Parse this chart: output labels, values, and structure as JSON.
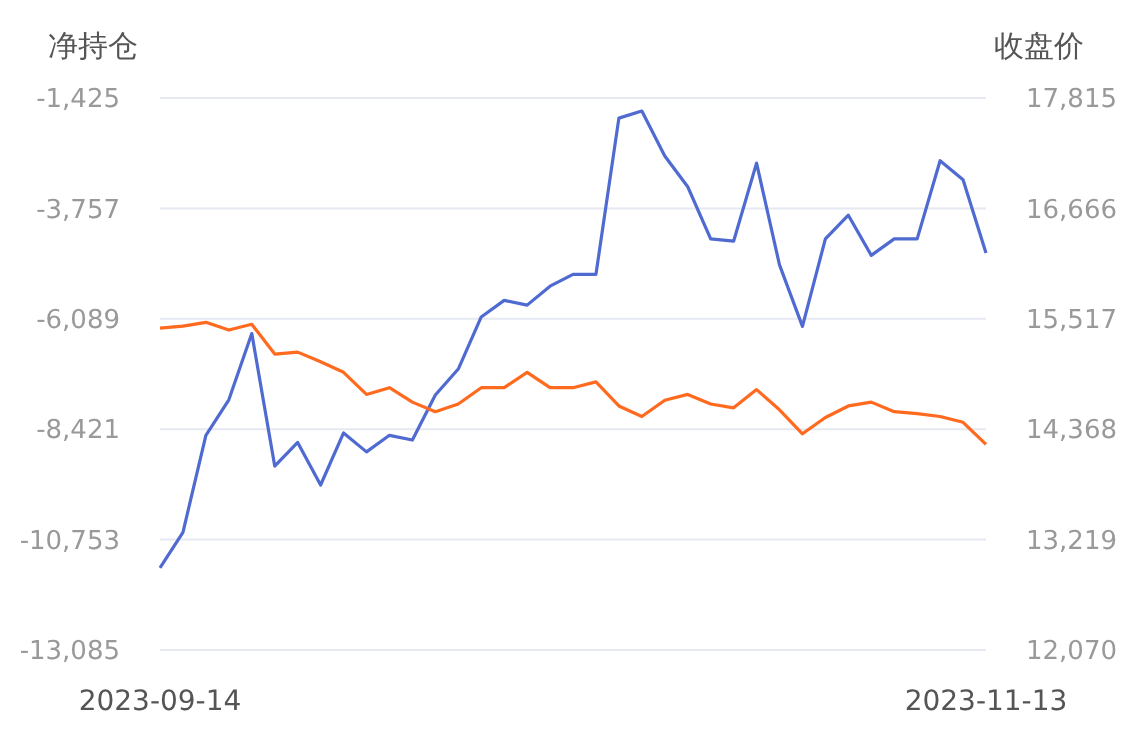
{
  "chart_data": {
    "type": "line",
    "ylabel": "净持仓",
    "y2label": "收盘价",
    "categories": [
      "2023-09-14",
      null,
      null,
      null,
      null,
      null,
      null,
      null,
      null,
      null,
      null,
      null,
      null,
      null,
      null,
      null,
      null,
      null,
      null,
      null,
      null,
      null,
      null,
      null,
      null,
      null,
      null,
      null,
      null,
      null,
      null,
      null,
      null,
      null,
      null,
      null,
      "2023-11-13"
    ],
    "series": [
      {
        "color": "#4f6ad0",
        "values": [
          -11350,
          -10600,
          -8550,
          -7800,
          -6400,
          -9200,
          -8700,
          -9600,
          -8500,
          -8900,
          -8550,
          -8650,
          -7700,
          -7150,
          -6050,
          -5700,
          -5800,
          -5400,
          -5150,
          -5150,
          -1850,
          -1700,
          -2650,
          -3300,
          -4400,
          -4450,
          -2800,
          -4950,
          -6250,
          -4400,
          -3900,
          -4750,
          -4400,
          -4400,
          -2750,
          -3150,
          -4700
        ]
      },
      {
        "color": "#ff6a1f",
        "axis": "y2",
        "values": [
          15420,
          15440,
          15480,
          15400,
          15460,
          15150,
          15170,
          15070,
          14960,
          14730,
          14800,
          14650,
          14550,
          14630,
          14800,
          14800,
          14960,
          14800,
          14800,
          14860,
          14610,
          14500,
          14670,
          14730,
          14630,
          14590,
          14780,
          14570,
          14320,
          14490,
          14610,
          14650,
          14550,
          14530,
          14500,
          14440,
          14210
        ]
      }
    ],
    "ylim": [
      -13085,
      -1425
    ],
    "yticks": [
      {
        "value": -13085,
        "label": "-13,085"
      },
      {
        "value": -10753,
        "label": "-10,753"
      },
      {
        "value": -8421,
        "label": "-8,421"
      },
      {
        "value": -6089,
        "label": "-6,089"
      },
      {
        "value": -3757,
        "label": "-3,757"
      },
      {
        "value": -1425,
        "label": "-1,425"
      }
    ],
    "y2lim": [
      12070,
      17815
    ],
    "y2ticks": [
      {
        "value": 12070,
        "label": "12,070"
      },
      {
        "value": 13219,
        "label": "13,219"
      },
      {
        "value": 14368,
        "label": "14,368"
      },
      {
        "value": 15517,
        "label": "15,517"
      },
      {
        "value": 16666,
        "label": "16,666"
      },
      {
        "value": 17815,
        "label": "17,815"
      }
    ],
    "grid": "y",
    "marker": "none",
    "line_style": "solid"
  }
}
